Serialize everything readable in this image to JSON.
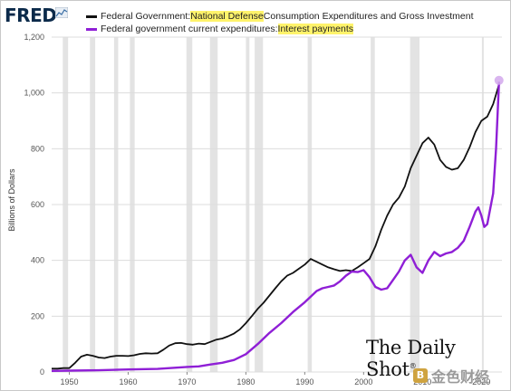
{
  "header": {
    "logo_text": "FRED"
  },
  "legend": {
    "items": [
      {
        "prefix": "Federal Government: ",
        "highlight": "National Defense",
        "suffix": " Consumption Expenditures and Gross Investment",
        "color": "#111111"
      },
      {
        "prefix": "Federal government current expenditures: ",
        "highlight": "Interest payments",
        "suffix": "",
        "color": "#8f1fd6"
      }
    ]
  },
  "watermark": {
    "text": "The Daily Shot",
    "mark": "®"
  },
  "jinse": {
    "text": "金色财经"
  },
  "chart_data": {
    "type": "line",
    "ylabel": "Billions of Dollars",
    "xlim": [
      1947,
      2023.5
    ],
    "ylim": [
      0,
      1200
    ],
    "x_ticks": [
      1950,
      1960,
      1970,
      1980,
      1990,
      2000,
      2010,
      2020
    ],
    "y_ticks": [
      0,
      200,
      400,
      600,
      800,
      1000,
      1200
    ],
    "y_tick_labels": [
      "0",
      "200",
      "400",
      "600",
      "800",
      "1,000",
      "1,200"
    ],
    "grid": "horizontal",
    "recessions": [
      [
        1948.9,
        1949.8
      ],
      [
        1953.5,
        1954.4
      ],
      [
        1957.6,
        1958.3
      ],
      [
        1960.3,
        1961.1
      ],
      [
        1969.9,
        1970.9
      ],
      [
        1973.9,
        1975.2
      ],
      [
        1980.0,
        1980.6
      ],
      [
        1981.5,
        1982.9
      ],
      [
        1990.5,
        1991.2
      ],
      [
        2001.2,
        2001.9
      ],
      [
        2007.9,
        2009.5
      ],
      [
        2020.1,
        2020.4
      ]
    ],
    "series": [
      {
        "name": "Federal Government: National Defense Consumption Expenditures and Gross Investment",
        "color": "#111111",
        "points": [
          [
            1947,
            12
          ],
          [
            1948,
            12
          ],
          [
            1949,
            14
          ],
          [
            1950,
            14
          ],
          [
            1951,
            33
          ],
          [
            1952,
            55
          ],
          [
            1953,
            62
          ],
          [
            1954,
            58
          ],
          [
            1955,
            52
          ],
          [
            1956,
            50
          ],
          [
            1957,
            55
          ],
          [
            1958,
            58
          ],
          [
            1959,
            58
          ],
          [
            1960,
            57
          ],
          [
            1961,
            60
          ],
          [
            1962,
            65
          ],
          [
            1963,
            67
          ],
          [
            1964,
            66
          ],
          [
            1965,
            67
          ],
          [
            1966,
            80
          ],
          [
            1967,
            95
          ],
          [
            1968,
            103
          ],
          [
            1969,
            104
          ],
          [
            1970,
            100
          ],
          [
            1971,
            98
          ],
          [
            1972,
            102
          ],
          [
            1973,
            100
          ],
          [
            1974,
            108
          ],
          [
            1975,
            116
          ],
          [
            1976,
            120
          ],
          [
            1977,
            128
          ],
          [
            1978,
            138
          ],
          [
            1979,
            153
          ],
          [
            1980,
            175
          ],
          [
            1981,
            200
          ],
          [
            1982,
            226
          ],
          [
            1983,
            248
          ],
          [
            1984,
            274
          ],
          [
            1985,
            300
          ],
          [
            1986,
            325
          ],
          [
            1987,
            345
          ],
          [
            1988,
            355
          ],
          [
            1989,
            370
          ],
          [
            1990,
            385
          ],
          [
            1991,
            405
          ],
          [
            1992,
            395
          ],
          [
            1993,
            385
          ],
          [
            1994,
            375
          ],
          [
            1995,
            368
          ],
          [
            1996,
            362
          ],
          [
            1997,
            365
          ],
          [
            1998,
            362
          ],
          [
            1999,
            375
          ],
          [
            2000,
            390
          ],
          [
            2001,
            405
          ],
          [
            2002,
            450
          ],
          [
            2003,
            510
          ],
          [
            2004,
            560
          ],
          [
            2005,
            600
          ],
          [
            2006,
            625
          ],
          [
            2007,
            665
          ],
          [
            2008,
            730
          ],
          [
            2009,
            775
          ],
          [
            2010,
            820
          ],
          [
            2011,
            840
          ],
          [
            2012,
            815
          ],
          [
            2013,
            760
          ],
          [
            2014,
            735
          ],
          [
            2015,
            725
          ],
          [
            2016,
            730
          ],
          [
            2017,
            760
          ],
          [
            2018,
            805
          ],
          [
            2019,
            860
          ],
          [
            2020,
            900
          ],
          [
            2021,
            915
          ],
          [
            2022,
            960
          ],
          [
            2023,
            1030
          ]
        ]
      },
      {
        "name": "Federal government current expenditures: Interest payments",
        "color": "#8f1fd6",
        "points": [
          [
            1947,
            4
          ],
          [
            1950,
            5
          ],
          [
            1955,
            6
          ],
          [
            1960,
            9
          ],
          [
            1965,
            11
          ],
          [
            1970,
            18
          ],
          [
            1972,
            20
          ],
          [
            1974,
            27
          ],
          [
            1976,
            33
          ],
          [
            1978,
            43
          ],
          [
            1980,
            64
          ],
          [
            1982,
            100
          ],
          [
            1984,
            140
          ],
          [
            1986,
            175
          ],
          [
            1988,
            215
          ],
          [
            1990,
            250
          ],
          [
            1991,
            270
          ],
          [
            1992,
            290
          ],
          [
            1993,
            300
          ],
          [
            1994,
            305
          ],
          [
            1995,
            310
          ],
          [
            1996,
            325
          ],
          [
            1997,
            345
          ],
          [
            1998,
            360
          ],
          [
            1999,
            358
          ],
          [
            2000,
            365
          ],
          [
            2001,
            340
          ],
          [
            2002,
            305
          ],
          [
            2003,
            295
          ],
          [
            2004,
            300
          ],
          [
            2005,
            330
          ],
          [
            2006,
            360
          ],
          [
            2007,
            400
          ],
          [
            2008,
            420
          ],
          [
            2009,
            375
          ],
          [
            2010,
            355
          ],
          [
            2011,
            400
          ],
          [
            2012,
            430
          ],
          [
            2013,
            415
          ],
          [
            2014,
            425
          ],
          [
            2015,
            430
          ],
          [
            2016,
            445
          ],
          [
            2017,
            470
          ],
          [
            2018,
            520
          ],
          [
            2019,
            575
          ],
          [
            2019.5,
            590
          ],
          [
            2020,
            560
          ],
          [
            2020.5,
            520
          ],
          [
            2021,
            530
          ],
          [
            2022,
            640
          ],
          [
            2022.5,
            800
          ],
          [
            2023,
            1040
          ]
        ]
      }
    ],
    "end_marker": {
      "x": 2023,
      "y": 1045,
      "color": "#d2a8ec"
    }
  }
}
